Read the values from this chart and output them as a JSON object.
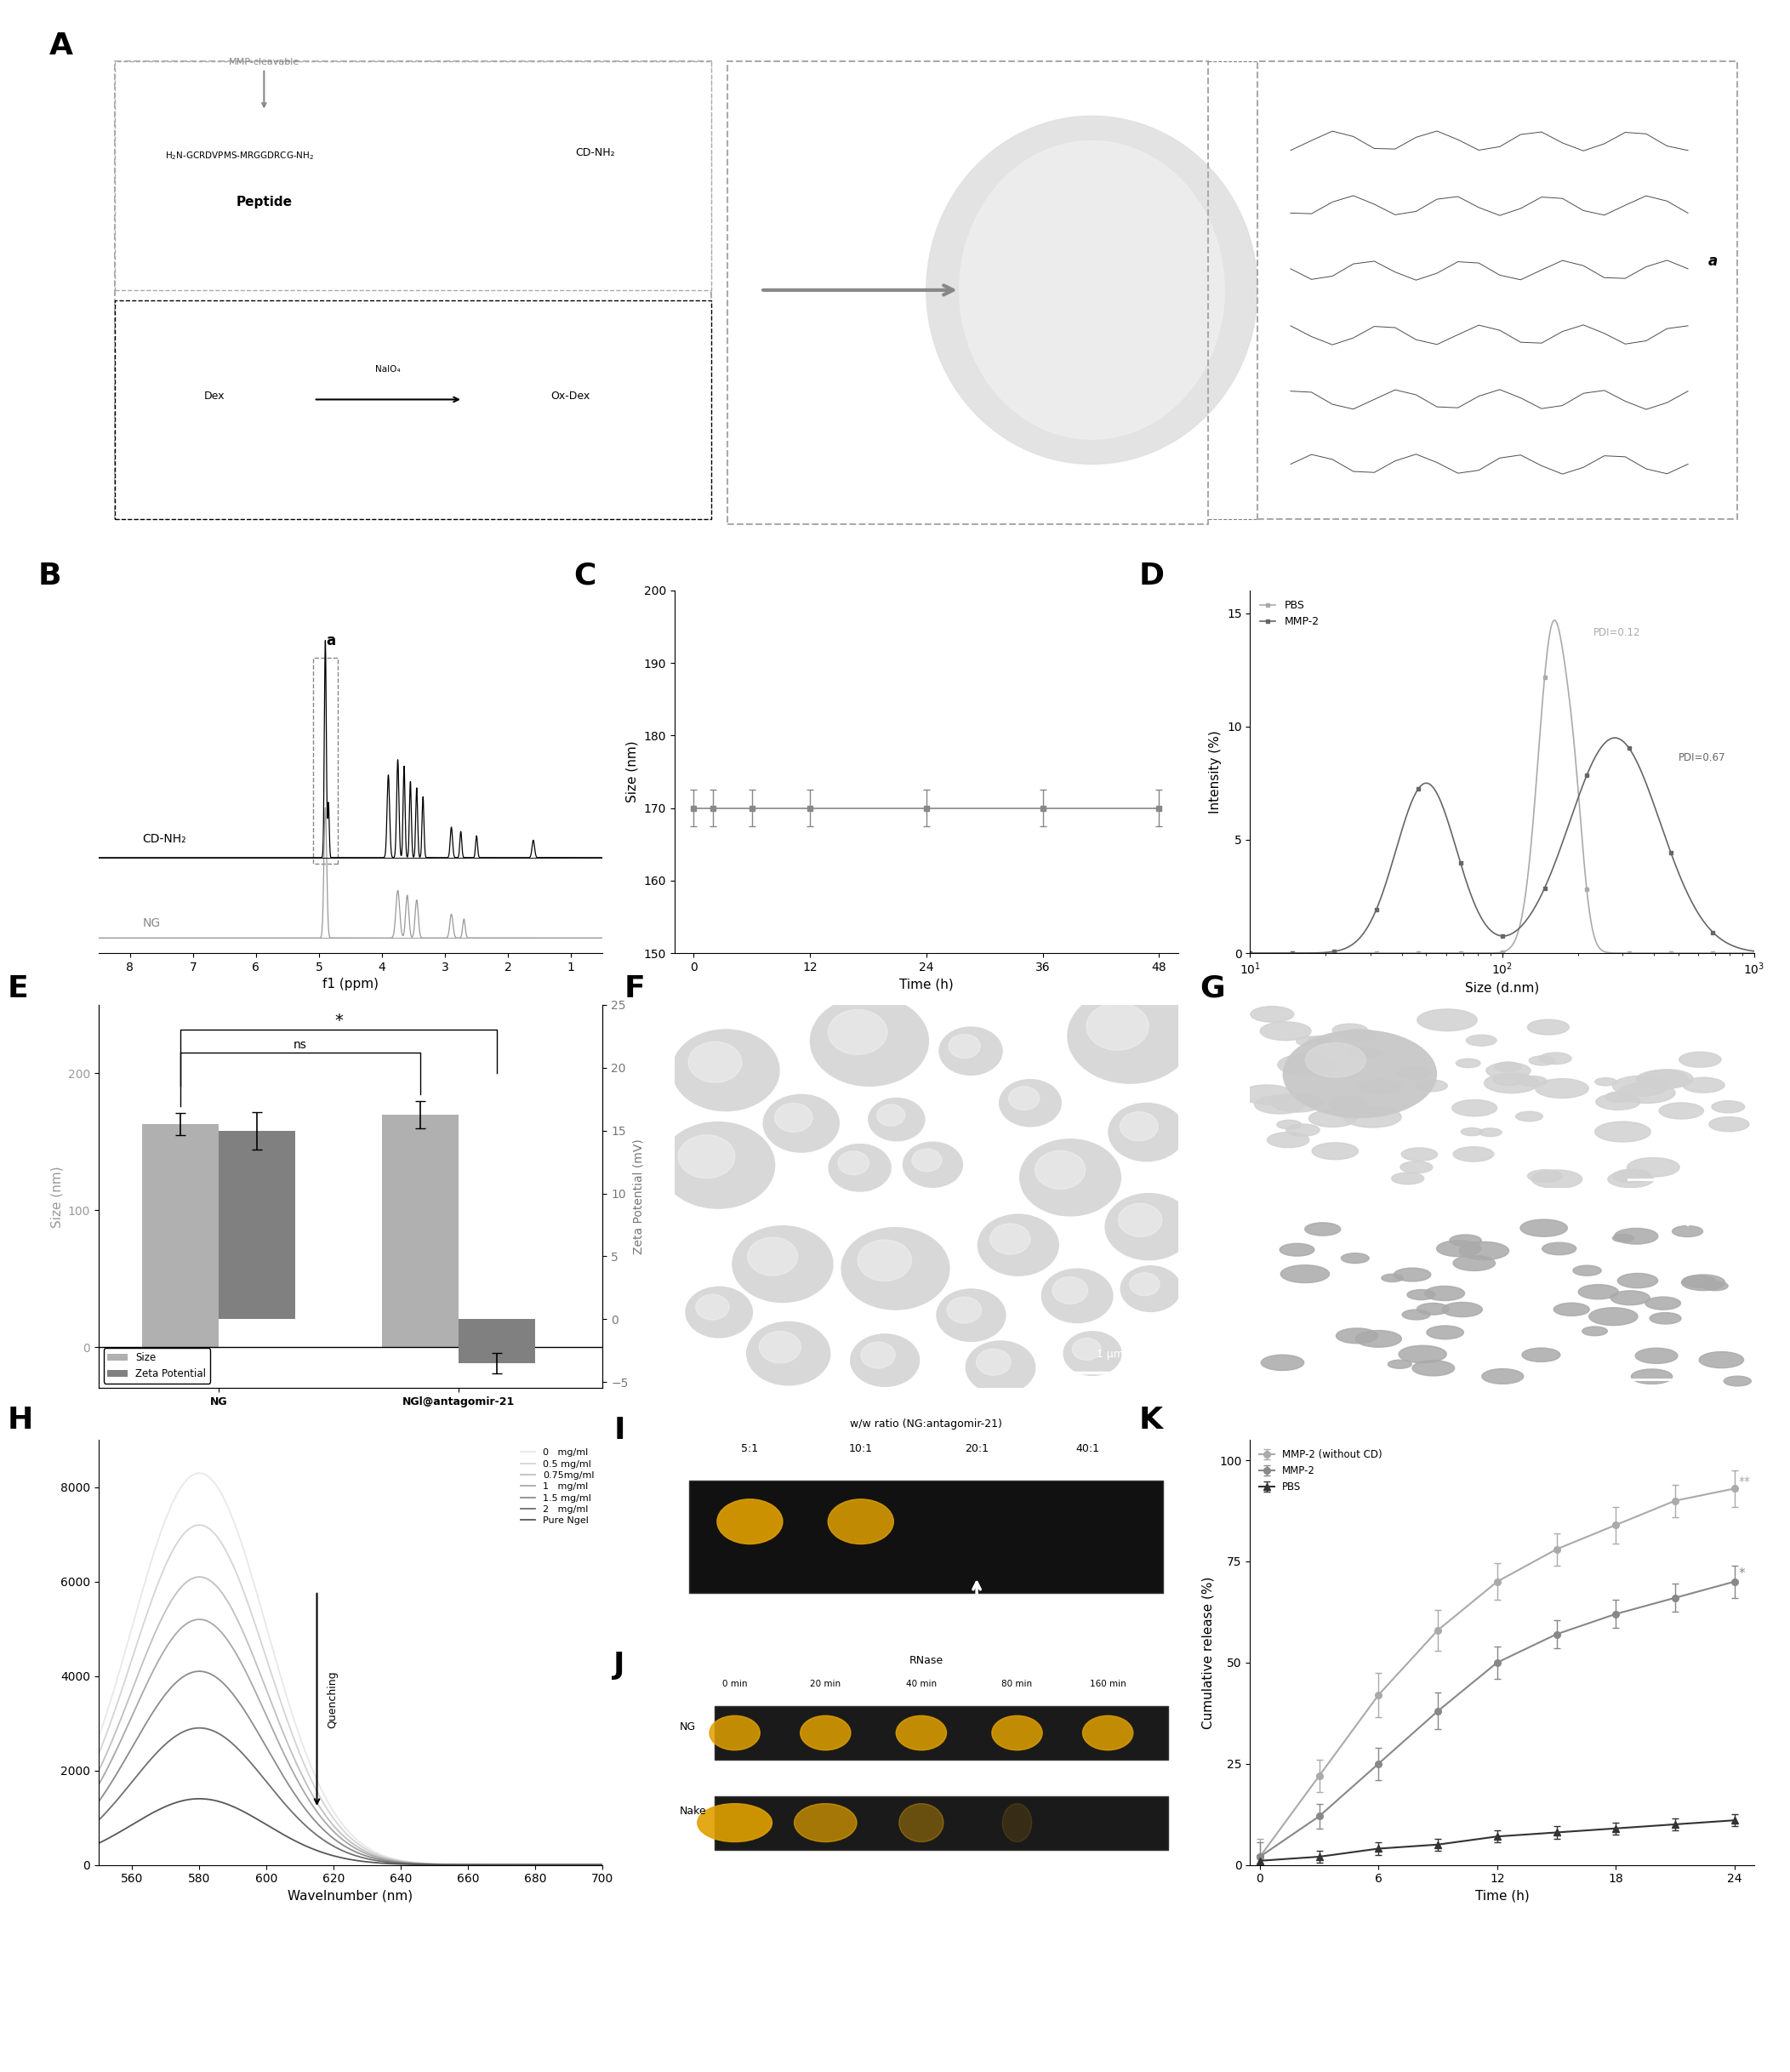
{
  "panel_label_fontsize": 26,
  "B": {
    "xlabel": "f1 (ppm)",
    "xlim_left": 8.5,
    "xlim_right": 0.5
  },
  "C": {
    "xlabel": "Time (h)",
    "ylabel": "Size (nm)",
    "yticks": [
      150,
      160,
      170,
      180,
      190,
      200
    ],
    "xticks": [
      0,
      12,
      24,
      36,
      48
    ],
    "color": "#888888",
    "time_points": [
      0,
      2,
      6,
      12,
      24,
      36,
      48
    ],
    "size_values": [
      170,
      170,
      170,
      170,
      170,
      170,
      170
    ]
  },
  "D": {
    "xlabel": "Size (d.nm)",
    "ylabel": "Intensity (%)",
    "yticks": [
      0,
      5,
      10,
      15
    ],
    "label_PBS": "PBS",
    "label_MMP2": "MMP-2",
    "color_PBS": "#aaaaaa",
    "color_MMP2": "#666666",
    "PDI_PBS": "PDI=0.12",
    "PDI_MMP2": "PDI=0.67"
  },
  "E": {
    "ylabel_left": "Size (nm)",
    "ylabel_right": "Zeta Potential (mV)",
    "size_NG": 163,
    "size_NG_err": 8,
    "size_NGI": 170,
    "size_NGI_err": 10,
    "zeta_NG": 15,
    "zeta_NG_err": 1.5,
    "zeta_NGI": -3.5,
    "zeta_NGI_err": 0.8,
    "color_size": "#b0b0b0",
    "color_zeta": "#808080"
  },
  "H": {
    "xlabel": "Wavelnumber (nm)",
    "yticks": [
      0,
      2000,
      4000,
      6000,
      8000
    ],
    "concentrations": [
      "0   mg/ml",
      "0.5 mg/ml",
      "0.75mg/ml",
      "1   mg/ml",
      "1.5 mg/ml",
      "2   mg/ml",
      "Pure Ngel"
    ],
    "colors_H": [
      "#e8e8e8",
      "#d4d4d4",
      "#c0c0c0",
      "#a8a8a8",
      "#8c8c8c",
      "#707070",
      "#585858"
    ],
    "peak_nm": 580,
    "peak_intensities": [
      8300,
      7200,
      6100,
      5200,
      4100,
      2900,
      1400
    ]
  },
  "K": {
    "xlabel": "Time (h)",
    "ylabel": "Cumulative release (%)",
    "yticks": [
      0,
      25,
      50,
      75,
      100
    ],
    "xticks": [
      0,
      6,
      12,
      18,
      24
    ],
    "label_MMP2_noCD": "MMP-2 (without CD)",
    "label_MMP2": "MMP-2",
    "label_PBS": "PBS",
    "color_MMP2_noCD": "#aaaaaa",
    "color_MMP2": "#888888",
    "color_PBS": "#333333",
    "time_pts": [
      0,
      3,
      6,
      9,
      12,
      15,
      18,
      21,
      24
    ],
    "release_MMP2_noCD": [
      2,
      22,
      42,
      58,
      70,
      78,
      84,
      90,
      93
    ],
    "release_MMP2": [
      2,
      12,
      25,
      38,
      50,
      57,
      62,
      66,
      70
    ],
    "release_PBS": [
      1,
      2,
      4,
      5,
      7,
      8,
      9,
      10,
      11
    ]
  }
}
